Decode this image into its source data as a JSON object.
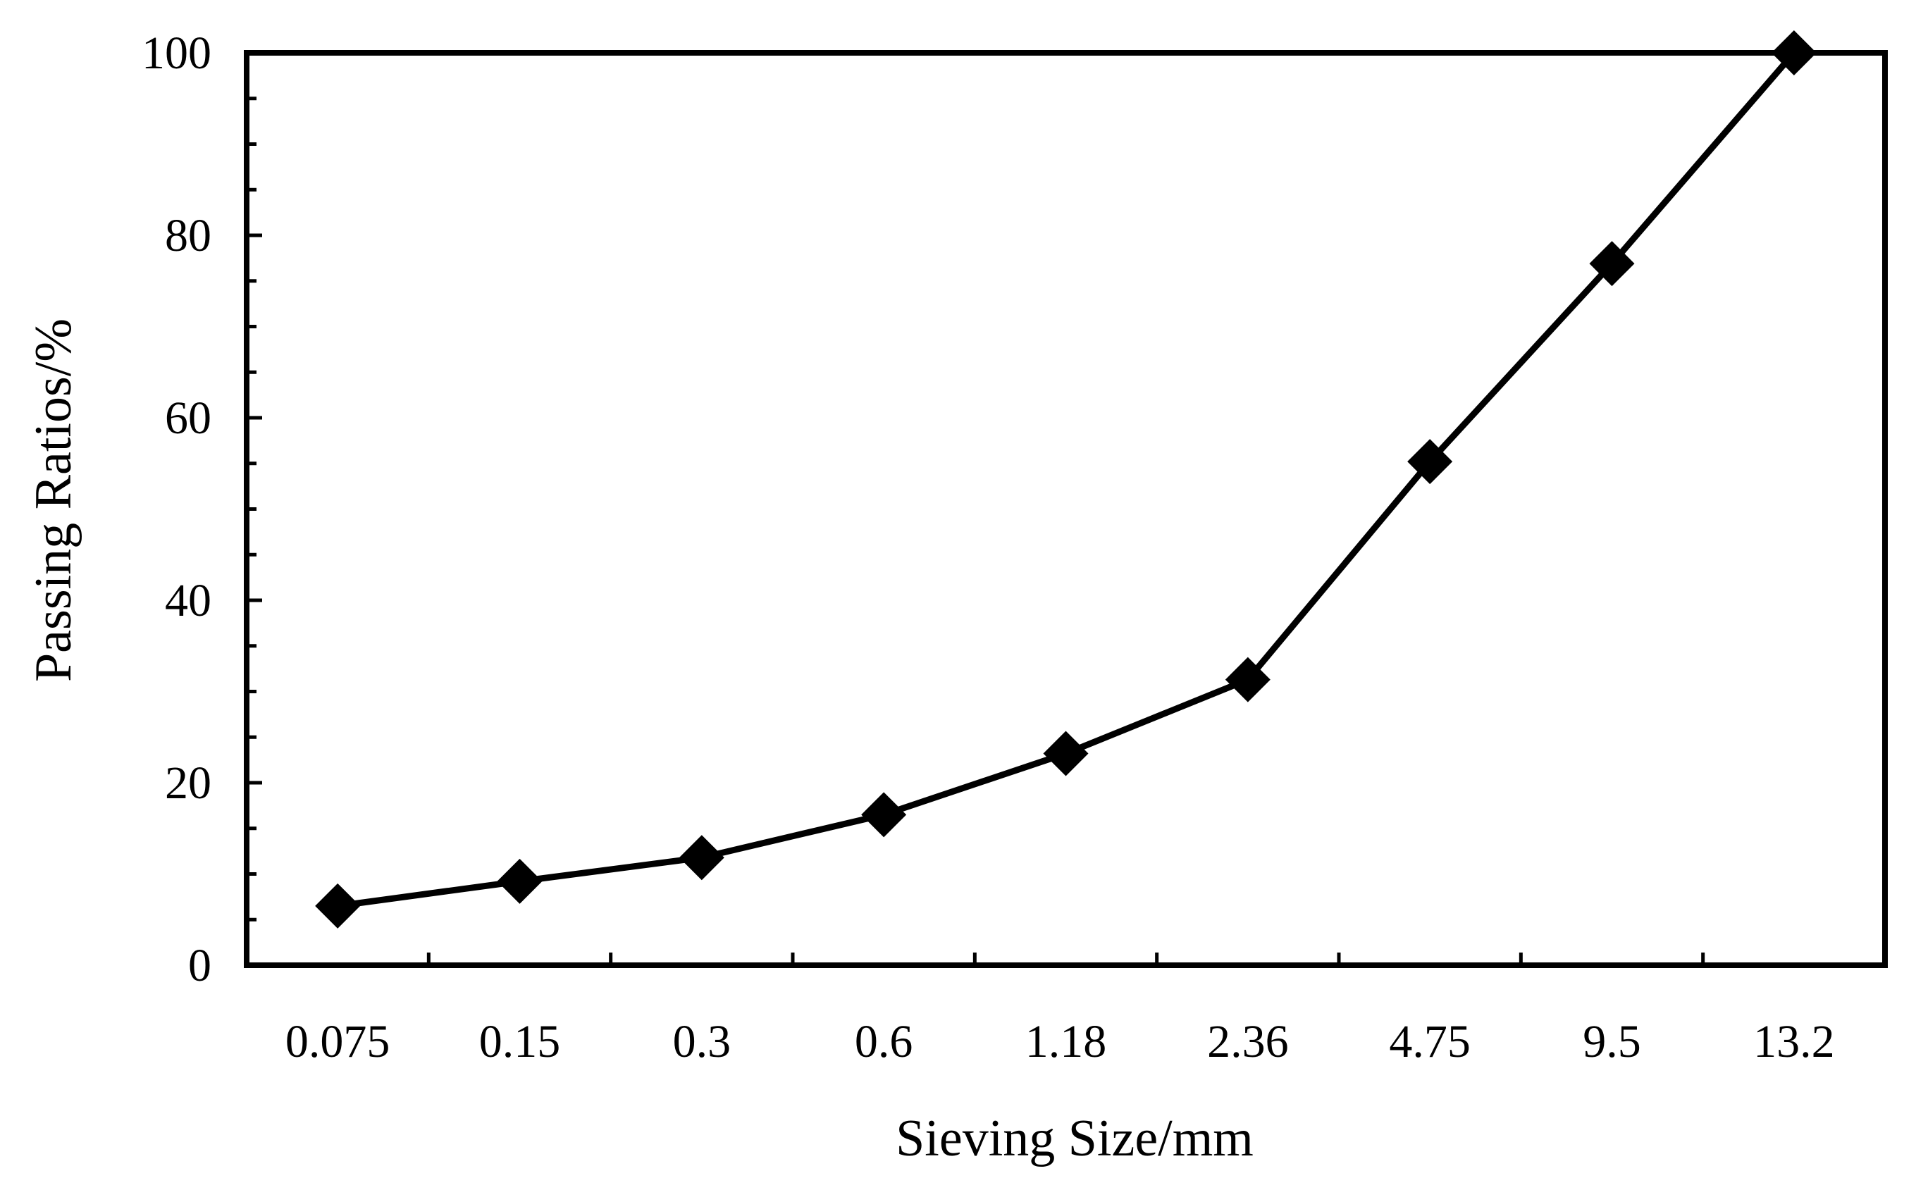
{
  "chart_data": {
    "type": "line",
    "title": "",
    "xlabel": "Sieving Size/mm",
    "ylabel": "Passing Ratios/%",
    "categories": [
      "0.075",
      "0.15",
      "0.3",
      "0.6",
      "1.18",
      "2.36",
      "4.75",
      "9.5",
      "13.2"
    ],
    "series": [
      {
        "name": "Passing Ratios",
        "marker": "diamond",
        "values": [
          6.5,
          9.2,
          11.8,
          16.5,
          23.2,
          31.3,
          55.2,
          76.9,
          100
        ]
      }
    ],
    "ylim": [
      0,
      100
    ],
    "y_ticks": [
      0,
      20,
      40,
      60,
      80,
      100
    ],
    "y_minor_step": 5,
    "grid": false,
    "legend": "none",
    "line_color": "#000000"
  }
}
